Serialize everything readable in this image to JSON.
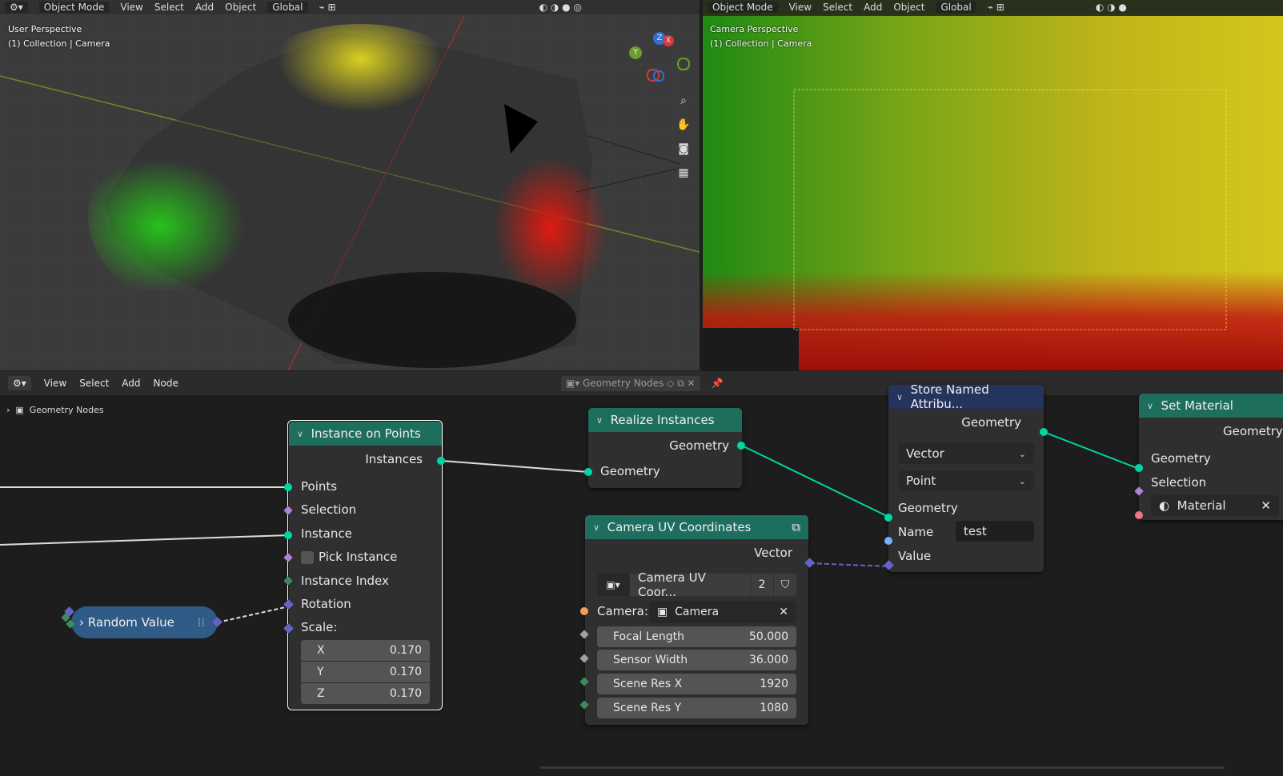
{
  "left_viewport": {
    "header": {
      "mode": "Object Mode",
      "menu": [
        "View",
        "Select",
        "Add",
        "Object"
      ],
      "transform": "Global"
    },
    "overlay_line1": "User Perspective",
    "overlay_line2": "(1) Collection | Camera"
  },
  "right_viewport": {
    "header": {
      "mode": "Object Mode",
      "menu": [
        "View",
        "Select",
        "Add",
        "Object"
      ],
      "transform": "Global"
    },
    "overlay_line1": "Camera Perspective",
    "overlay_line2": "(1) Collection | Camera"
  },
  "gizmo": {
    "x": "X",
    "y": "Y",
    "z": "Z"
  },
  "node_editor": {
    "menu": [
      "View",
      "Select",
      "Add",
      "Node"
    ],
    "tree_name": "Geometry Nodes",
    "breadcrumb": "Geometry Nodes"
  },
  "nodes": {
    "instance_on_points": {
      "title": "Instance on Points",
      "out_instances": "Instances",
      "in_points": "Points",
      "in_selection": "Selection",
      "in_instance": "Instance",
      "in_pick_instance": "Pick Instance",
      "in_instance_index": "Instance Index",
      "in_rotation": "Rotation",
      "in_scale": "Scale:",
      "scale_x_label": "X",
      "scale_x": "0.170",
      "scale_y_label": "Y",
      "scale_y": "0.170",
      "scale_z_label": "Z",
      "scale_z": "0.170"
    },
    "random_value": {
      "title": "Random Value"
    },
    "realize_instances": {
      "title": "Realize Instances",
      "out_geometry": "Geometry",
      "in_geometry": "Geometry"
    },
    "camera_uv": {
      "title": "Camera UV Coordinates",
      "out_vector": "Vector",
      "group_name": "Camera UV Coor...",
      "users": "2",
      "camera_label": "Camera:",
      "camera_value": "Camera",
      "focal_label": "Focal Length",
      "focal_value": "50.000",
      "sensor_label": "Sensor Width",
      "sensor_value": "36.000",
      "resx_label": "Scene Res X",
      "resx_value": "1920",
      "resy_label": "Scene Res Y",
      "resy_value": "1080"
    },
    "store_named": {
      "title": "Store Named Attribu...",
      "out_geometry": "Geometry",
      "data_type": "Vector",
      "domain": "Point",
      "in_geometry": "Geometry",
      "in_name": "Name",
      "name_value": "test",
      "in_value": "Value"
    },
    "set_material": {
      "title": "Set Material",
      "out_geometry": "Geometry",
      "in_geometry": "Geometry",
      "in_selection": "Selection",
      "in_material": "Material"
    }
  },
  "colors": {
    "accent_teal": "#00d6a3",
    "node_header_teal": "#1e6e5e",
    "node_header_navy": "#25345c"
  }
}
